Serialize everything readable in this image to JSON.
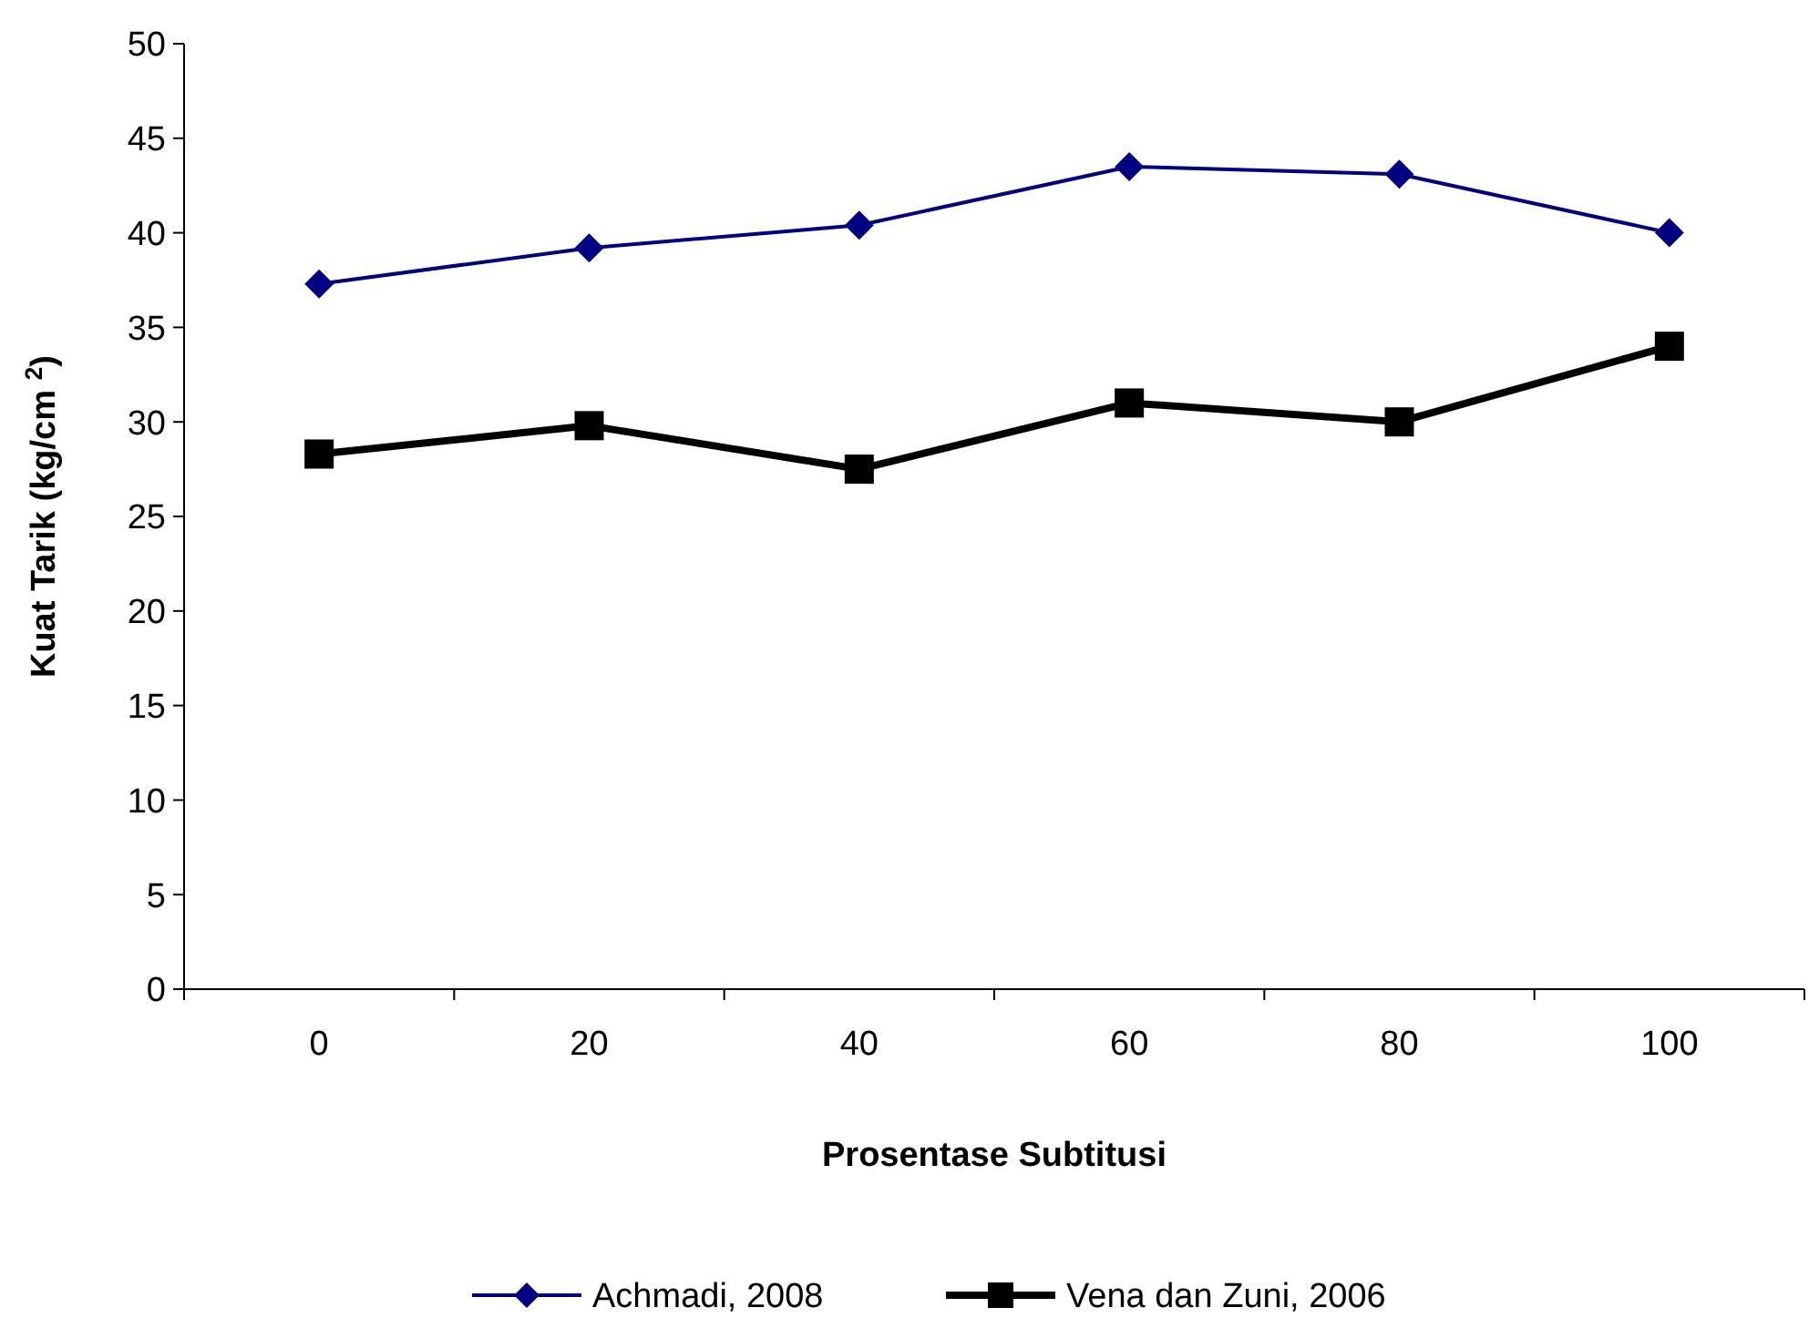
{
  "chart_data": {
    "type": "line",
    "xlabel": "Prosentase Subtitusi",
    "ylabel": "Kuat Tarik (kg/cm $^{2}$)",
    "categories": [
      "0",
      "20",
      "40",
      "60",
      "80",
      "100"
    ],
    "series": [
      {
        "name": "Achmadi, 2008",
        "color": "#000080",
        "values": [
          37.3,
          39.2,
          40.4,
          43.5,
          43.1,
          40.0
        ],
        "marker": "diamond"
      },
      {
        "name": "Vena dan Zuni, 2006",
        "color": "#000000",
        "values": [
          28.3,
          29.8,
          27.5,
          31.0,
          30.0,
          34.0
        ],
        "marker": "square"
      }
    ],
    "ylim": [
      0,
      50
    ],
    "yticks": [
      0,
      5,
      10,
      15,
      20,
      25,
      30,
      35,
      40,
      45,
      50
    ],
    "grid": false,
    "legend": "bottom"
  }
}
